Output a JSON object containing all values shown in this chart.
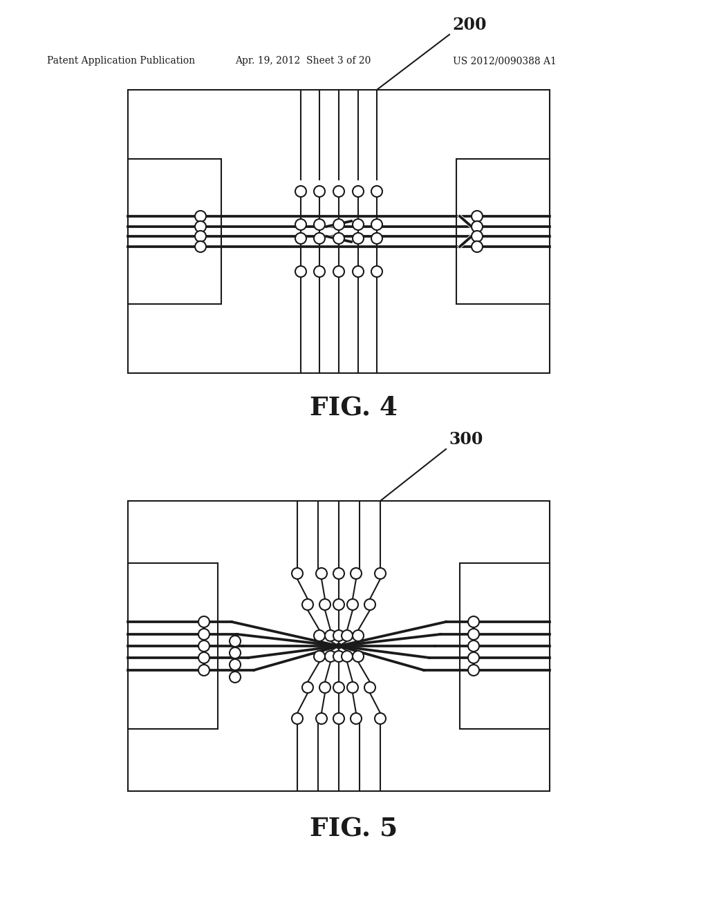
{
  "header_left": "Patent Application Publication",
  "header_mid": "Apr. 19, 2012  Sheet 3 of 20",
  "header_right": "US 2012/0090388 A1",
  "fig4_label": "FIG. 4",
  "fig5_label": "FIG. 5",
  "label_200": "200",
  "label_300": "300",
  "bg_color": "#ffffff",
  "lc": "#1a1a1a",
  "lw": 1.5,
  "er": 8
}
